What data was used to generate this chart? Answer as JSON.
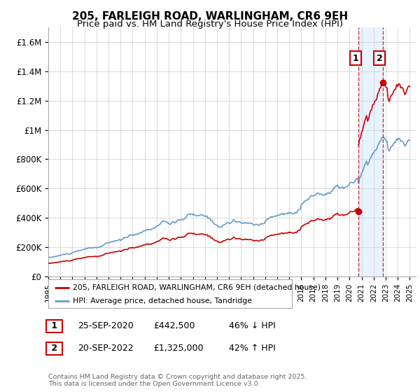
{
  "title": "205, FARLEIGH ROAD, WARLINGHAM, CR6 9EH",
  "subtitle": "Price paid vs. HM Land Registry's House Price Index (HPI)",
  "title_fontsize": 11,
  "subtitle_fontsize": 9.5,
  "ylabel_ticks": [
    "£0",
    "£200K",
    "£400K",
    "£600K",
    "£800K",
    "£1M",
    "£1.2M",
    "£1.4M",
    "£1.6M"
  ],
  "ytick_vals": [
    0,
    200000,
    400000,
    600000,
    800000,
    1000000,
    1200000,
    1400000,
    1600000
  ],
  "ylim": [
    0,
    1700000
  ],
  "line1_color": "#cc0000",
  "line2_color": "#6699cc",
  "legend1_label": "205, FARLEIGH ROAD, WARLINGHAM, CR6 9EH (detached house)",
  "legend2_label": "HPI: Average price, detached house, Tandridge",
  "annotation1_label": "1",
  "annotation2_label": "2",
  "sale1_date": "25-SEP-2020",
  "sale1_price": "£442,500",
  "sale1_pct": "46% ↓ HPI",
  "sale2_date": "20-SEP-2022",
  "sale2_price": "£1,325,000",
  "sale2_pct": "42% ↑ HPI",
  "copyright": "Contains HM Land Registry data © Crown copyright and database right 2025.\nThis data is licensed under the Open Government Licence v3.0.",
  "sale1_year": 2020.75,
  "sale1_value": 442500,
  "sale2_year": 2022.75,
  "sale2_value": 1325000,
  "shade_color": "#ddeeff",
  "background_color": "#ffffff",
  "grid_color": "#cccccc"
}
